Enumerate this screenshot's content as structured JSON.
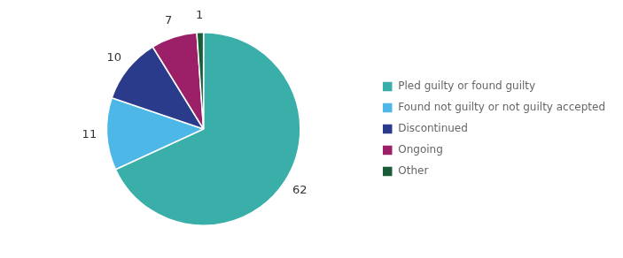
{
  "chart_data": {
    "type": "pie",
    "categories": [
      "Pled guilty or found guilty",
      "Found not guilty or not guilty accepted",
      "Discontinued",
      "Ongoing",
      "Other"
    ],
    "values": [
      62,
      11,
      10,
      7,
      1
    ],
    "colors": [
      "#3AAFA9",
      "#4DB8E8",
      "#2B3B8C",
      "#9B2067",
      "#1A5C38"
    ],
    "data_labels": true,
    "legend": "right"
  }
}
